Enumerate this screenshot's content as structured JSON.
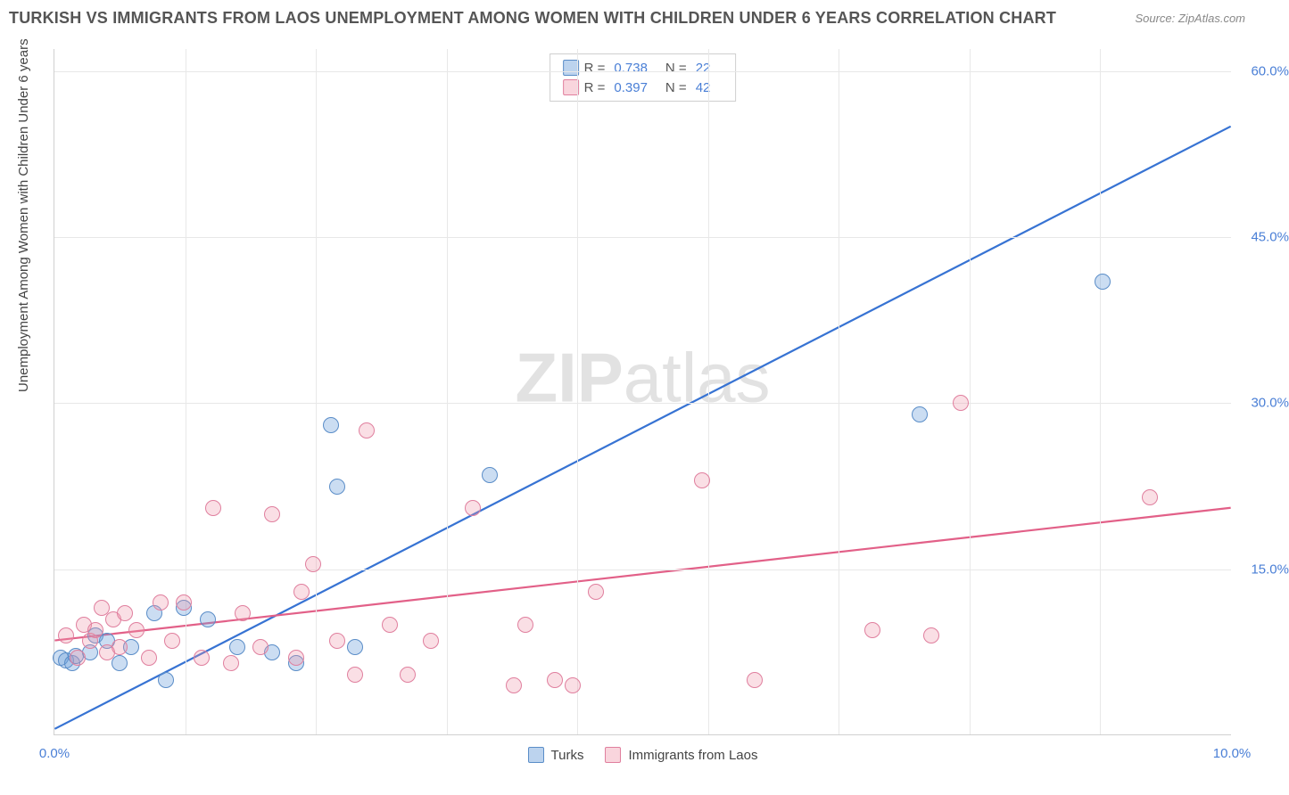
{
  "title": "TURKISH VS IMMIGRANTS FROM LAOS UNEMPLOYMENT AMONG WOMEN WITH CHILDREN UNDER 6 YEARS CORRELATION CHART",
  "source": "Source: ZipAtlas.com",
  "y_axis_label": "Unemployment Among Women with Children Under 6 years",
  "watermark_bold": "ZIP",
  "watermark_light": "atlas",
  "chart": {
    "type": "scatter",
    "background_color": "#ffffff",
    "grid_color": "#e8e8e8",
    "axis_color": "#d0d0d0",
    "tick_label_color": "#4a7fd6",
    "tick_fontsize": 15,
    "x_range": [
      0,
      10
    ],
    "y_range": [
      0,
      62
    ],
    "x_ticks": [
      0,
      10
    ],
    "y_ticks": [
      15,
      30,
      45,
      60
    ],
    "x_tick_labels": [
      "0.0%",
      "10.0%"
    ],
    "y_tick_labels": [
      "15.0%",
      "30.0%",
      "45.0%",
      "60.0%"
    ],
    "x_grid": [
      1.11,
      2.22,
      3.33,
      4.44,
      5.55,
      6.66,
      7.77,
      8.88
    ],
    "y_grid": [
      15,
      30,
      45,
      60
    ],
    "series": [
      {
        "name": "Turks",
        "color_fill": "rgba(106,158,218,0.35)",
        "color_stroke": "#5a8dc8",
        "marker_size": 18,
        "R": "0.738",
        "N": "22",
        "trend": {
          "x1": 0,
          "y1": 0.5,
          "x2": 10,
          "y2": 55,
          "color": "#3773d3",
          "width": 2.2
        },
        "points": [
          [
            0.05,
            7.0
          ],
          [
            0.1,
            6.8
          ],
          [
            0.15,
            6.5
          ],
          [
            0.18,
            7.2
          ],
          [
            0.3,
            7.5
          ],
          [
            0.35,
            9.0
          ],
          [
            0.45,
            8.5
          ],
          [
            0.55,
            6.5
          ],
          [
            0.65,
            8.0
          ],
          [
            0.85,
            11.0
          ],
          [
            0.95,
            5.0
          ],
          [
            1.1,
            11.5
          ],
          [
            1.3,
            10.5
          ],
          [
            1.55,
            8.0
          ],
          [
            1.85,
            7.5
          ],
          [
            2.05,
            6.5
          ],
          [
            2.35,
            28.0
          ],
          [
            2.4,
            22.5
          ],
          [
            2.55,
            8.0
          ],
          [
            3.7,
            23.5
          ],
          [
            7.35,
            29.0
          ],
          [
            8.9,
            41.0
          ]
        ]
      },
      {
        "name": "Immigrants from Laos",
        "color_fill": "rgba(240,150,170,0.30)",
        "color_stroke": "#e07f9e",
        "marker_size": 18,
        "R": "0.397",
        "N": "42",
        "trend": {
          "x1": 0,
          "y1": 8.5,
          "x2": 10,
          "y2": 20.5,
          "color": "#e26088",
          "width": 2.2
        },
        "points": [
          [
            0.1,
            9.0
          ],
          [
            0.2,
            7.0
          ],
          [
            0.25,
            10.0
          ],
          [
            0.3,
            8.5
          ],
          [
            0.35,
            9.5
          ],
          [
            0.4,
            11.5
          ],
          [
            0.45,
            7.5
          ],
          [
            0.5,
            10.5
          ],
          [
            0.55,
            8.0
          ],
          [
            0.6,
            11.0
          ],
          [
            0.7,
            9.5
          ],
          [
            0.8,
            7.0
          ],
          [
            0.9,
            12.0
          ],
          [
            1.0,
            8.5
          ],
          [
            1.1,
            12.0
          ],
          [
            1.25,
            7.0
          ],
          [
            1.35,
            20.5
          ],
          [
            1.5,
            6.5
          ],
          [
            1.6,
            11.0
          ],
          [
            1.75,
            8.0
          ],
          [
            1.85,
            20.0
          ],
          [
            2.05,
            7.0
          ],
          [
            2.1,
            13.0
          ],
          [
            2.2,
            15.5
          ],
          [
            2.4,
            8.5
          ],
          [
            2.55,
            5.5
          ],
          [
            2.65,
            27.5
          ],
          [
            2.85,
            10.0
          ],
          [
            3.0,
            5.5
          ],
          [
            3.2,
            8.5
          ],
          [
            3.55,
            20.5
          ],
          [
            3.9,
            4.5
          ],
          [
            4.25,
            5.0
          ],
          [
            4.4,
            4.5
          ],
          [
            4.6,
            13.0
          ],
          [
            5.5,
            23.0
          ],
          [
            5.95,
            5.0
          ],
          [
            6.95,
            9.5
          ],
          [
            7.45,
            9.0
          ],
          [
            7.7,
            30.0
          ],
          [
            9.3,
            21.5
          ],
          [
            4.0,
            10.0
          ]
        ]
      }
    ],
    "legend_top_labels": {
      "R": "R =",
      "N": "N ="
    },
    "legend_bottom": [
      "Turks",
      "Immigrants from Laos"
    ]
  }
}
